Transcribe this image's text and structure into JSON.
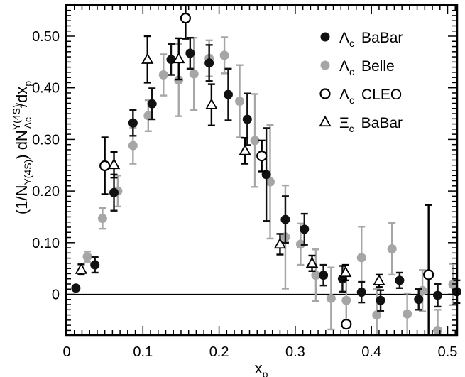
{
  "chart_data": {
    "type": "scatter",
    "title": "",
    "xlabel": "x",
    "xlabel_sub": "p",
    "ylabel": {
      "pre": "(1/N",
      "sub1": "Υ(4S)",
      "mid": ") dN",
      "sup2": "Υ(4S)",
      "sub2": "Λc",
      "post": "/dx",
      "sub3": "p"
    },
    "xlim": [
      0,
      0.52
    ],
    "ylim": [
      -0.08,
      0.56
    ],
    "xticks": [
      0,
      0.1,
      0.2,
      0.3,
      0.4,
      0.5
    ],
    "xtick_labels": [
      "0",
      "0.1",
      "0.2",
      "0.3",
      "0.4",
      "0.5"
    ],
    "yticks": [
      0,
      0.1,
      0.2,
      0.3,
      0.4,
      0.5
    ],
    "ytick_labels": [
      "0",
      "0.10",
      "0.20",
      "0.30",
      "0.40",
      "0.50"
    ],
    "zero_line": true,
    "legend_position": "top-right",
    "series": [
      {
        "name": "Λc BaBar",
        "legend_symbol": "Λ",
        "legend_sub": "c",
        "legend_text": "BaBar",
        "marker": "filled-circle",
        "color": "#111111",
        "points": [
          [
            0.012,
            0.012,
            0.004
          ],
          [
            0.037,
            0.057,
            0.015
          ],
          [
            0.062,
            0.197,
            0.035
          ],
          [
            0.087,
            0.332,
            0.025
          ],
          [
            0.112,
            0.369,
            0.03
          ],
          [
            0.137,
            0.455,
            0.03
          ],
          [
            0.162,
            0.467,
            0.03
          ],
          [
            0.187,
            0.448,
            0.035
          ],
          [
            0.212,
            0.387,
            0.05
          ],
          [
            0.237,
            0.339,
            0.05
          ],
          [
            0.262,
            0.232,
            0.09
          ],
          [
            0.287,
            0.145,
            0.045
          ],
          [
            0.312,
            0.126,
            0.03
          ],
          [
            0.337,
            0.037,
            0.02
          ],
          [
            0.362,
            0.03,
            0.025
          ],
          [
            0.387,
            0.004,
            0.02
          ],
          [
            0.412,
            -0.012,
            0.02
          ],
          [
            0.437,
            0.027,
            0.015
          ],
          [
            0.462,
            -0.01,
            0.02
          ],
          [
            0.487,
            -0.002,
            0.022
          ],
          [
            0.512,
            0.005,
            0.022
          ]
        ]
      },
      {
        "name": "Λc Belle",
        "legend_symbol": "Λ",
        "legend_sub": "c",
        "legend_text": "Belle",
        "marker": "filled-circle",
        "color": "#a6a6a6",
        "points": [
          [
            0.027,
            0.073,
            0.01
          ],
          [
            0.047,
            0.147,
            0.02
          ],
          [
            0.067,
            0.2,
            0.03
          ],
          [
            0.087,
            0.288,
            0.035
          ],
          [
            0.107,
            0.346,
            0.03
          ],
          [
            0.127,
            0.425,
            0.04
          ],
          [
            0.147,
            0.415,
            0.07
          ],
          [
            0.167,
            0.427,
            0.07
          ],
          [
            0.187,
            0.457,
            0.035
          ],
          [
            0.207,
            0.463,
            0.035
          ],
          [
            0.227,
            0.374,
            0.07
          ],
          [
            0.247,
            0.298,
            0.09
          ],
          [
            0.267,
            0.218,
            0.11
          ],
          [
            0.287,
            0.111,
            0.1
          ],
          [
            0.307,
            0.097,
            0.04
          ],
          [
            0.327,
            0.037,
            0.05
          ],
          [
            0.347,
            -0.008,
            0.06
          ],
          [
            0.367,
            -0.012,
            0.05
          ],
          [
            0.387,
            0.071,
            0.06
          ],
          [
            0.407,
            -0.04,
            0.05
          ],
          [
            0.427,
            0.088,
            0.05
          ],
          [
            0.447,
            -0.038,
            0.04
          ],
          [
            0.467,
            0.007,
            0.04
          ],
          [
            0.487,
            -0.07,
            0.04
          ],
          [
            0.507,
            0.019,
            0.04
          ]
        ]
      },
      {
        "name": "Λc CLEO",
        "legend_symbol": "Λ",
        "legend_sub": "c",
        "legend_text": "CLEO",
        "marker": "open-circle",
        "color": "#000000",
        "points": [
          [
            0.05,
            0.249,
            0.055
          ],
          [
            0.156,
            0.535,
            0.04
          ],
          [
            0.256,
            0.268,
            0.03
          ],
          [
            0.367,
            -0.058,
            0.0
          ],
          [
            0.475,
            0.038,
            0.135
          ]
        ]
      },
      {
        "name": "Ξc BaBar",
        "legend_symbol": "Ξ",
        "legend_sub": "c",
        "legend_text": "BaBar",
        "marker": "open-triangle",
        "color": "#000000",
        "points": [
          [
            0.019,
            0.048,
            0.01
          ],
          [
            0.062,
            0.251,
            0.025
          ],
          [
            0.106,
            0.455,
            0.045
          ],
          [
            0.147,
            0.456,
            0.04
          ],
          [
            0.19,
            0.367,
            0.04
          ],
          [
            0.234,
            0.278,
            0.025
          ],
          [
            0.28,
            0.097,
            0.02
          ],
          [
            0.322,
            0.06,
            0.015
          ],
          [
            0.366,
            0.042,
            0.015
          ],
          [
            0.41,
            0.026,
            0.012
          ]
        ]
      }
    ]
  }
}
